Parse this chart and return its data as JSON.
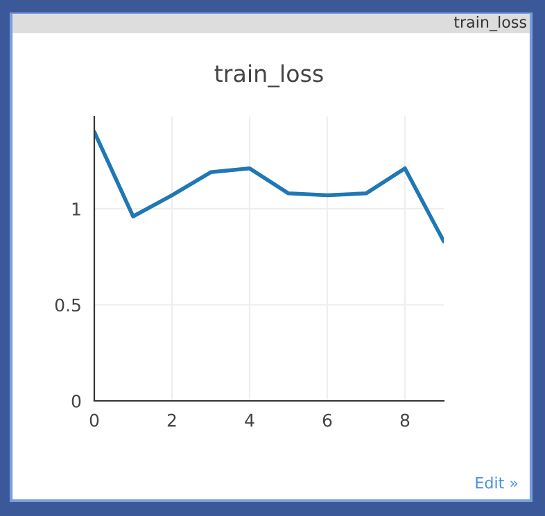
{
  "chart_data": {
    "type": "line",
    "title": "train_loss",
    "x": [
      0,
      1,
      2,
      3,
      4,
      5,
      6,
      7,
      8,
      9
    ],
    "series": [
      {
        "color": "#1f77b4",
        "values": [
          1.4,
          0.96,
          1.07,
          1.19,
          1.21,
          1.08,
          1.07,
          1.08,
          1.21,
          0.83
        ]
      }
    ],
    "xlim": [
      0,
      9
    ],
    "ylim": [
      0,
      1.48
    ],
    "xticks": [
      0,
      2,
      4,
      6,
      8
    ],
    "yticks": [
      0,
      0.5,
      1
    ],
    "grid": true,
    "marker": "none",
    "line_style": "solid",
    "annotations": [
      "train_loss",
      "Edit »"
    ]
  }
}
